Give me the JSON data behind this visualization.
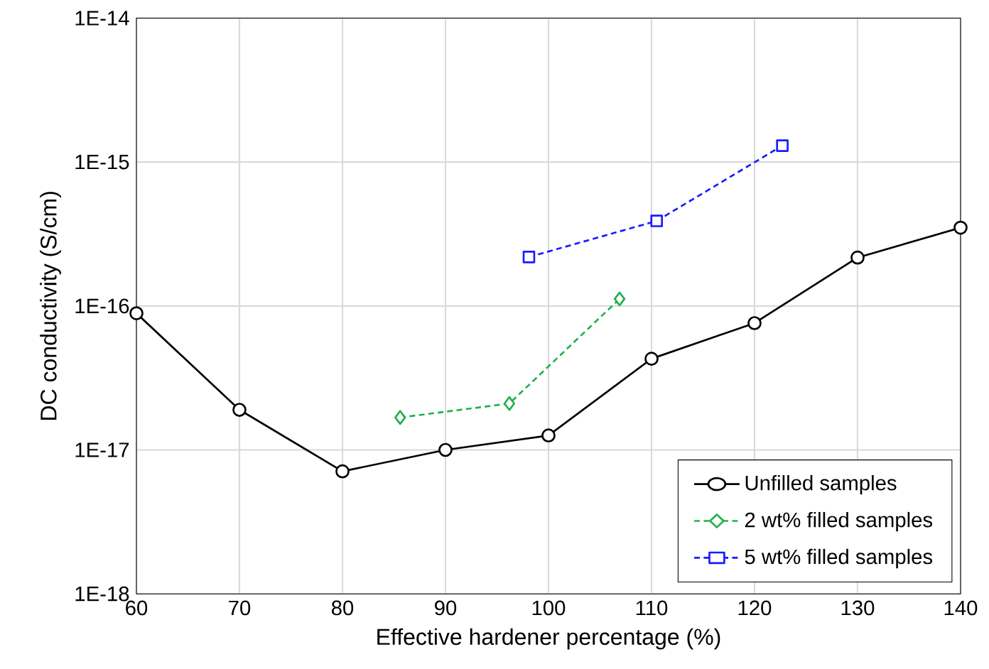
{
  "chart_data": {
    "type": "line",
    "xlabel": "Effective hardener percentage (%)",
    "ylabel": "DC conductivity (S/cm)",
    "log": "y",
    "grid": true,
    "legend": "bottom right",
    "xlim": [
      60,
      140
    ],
    "xticks": [
      60,
      70,
      80,
      90,
      100,
      110,
      120,
      130,
      140
    ],
    "ylim": [
      1e-18,
      1e-14
    ],
    "yticks": [
      {
        "value": 1e-18,
        "label": "1E-18"
      },
      {
        "value": 1e-17,
        "label": "1E-17"
      },
      {
        "value": 1e-16,
        "label": "1E-16"
      },
      {
        "value": 1e-15,
        "label": "1E-15"
      },
      {
        "value": 1e-14,
        "label": "1E-14"
      }
    ],
    "series": [
      {
        "name": "Unfilled samples",
        "color": "#000000",
        "marker": "circle",
        "line_style": "solid",
        "x": [
          60,
          70,
          80,
          90,
          100,
          110,
          120,
          130,
          140
        ],
        "values": [
          8.9e-17,
          1.9e-17,
          7.1e-18,
          1e-17,
          1.26e-17,
          4.3e-17,
          7.6e-17,
          2.17e-16,
          3.5e-16
        ]
      },
      {
        "name": "2 wt% filled samples",
        "color": "#22b14c",
        "marker": "diamond",
        "line_style": "dashed",
        "x": [
          85.6,
          96.2,
          106.9
        ],
        "values": [
          1.68e-17,
          2.1e-17,
          1.12e-16
        ]
      },
      {
        "name": "5 wt% filled samples",
        "color": "#1a1aff",
        "marker": "square",
        "line_style": "dashed",
        "x": [
          98.1,
          110.5,
          122.7
        ],
        "values": [
          2.19e-16,
          3.9e-16,
          1.3e-15
        ]
      }
    ]
  }
}
